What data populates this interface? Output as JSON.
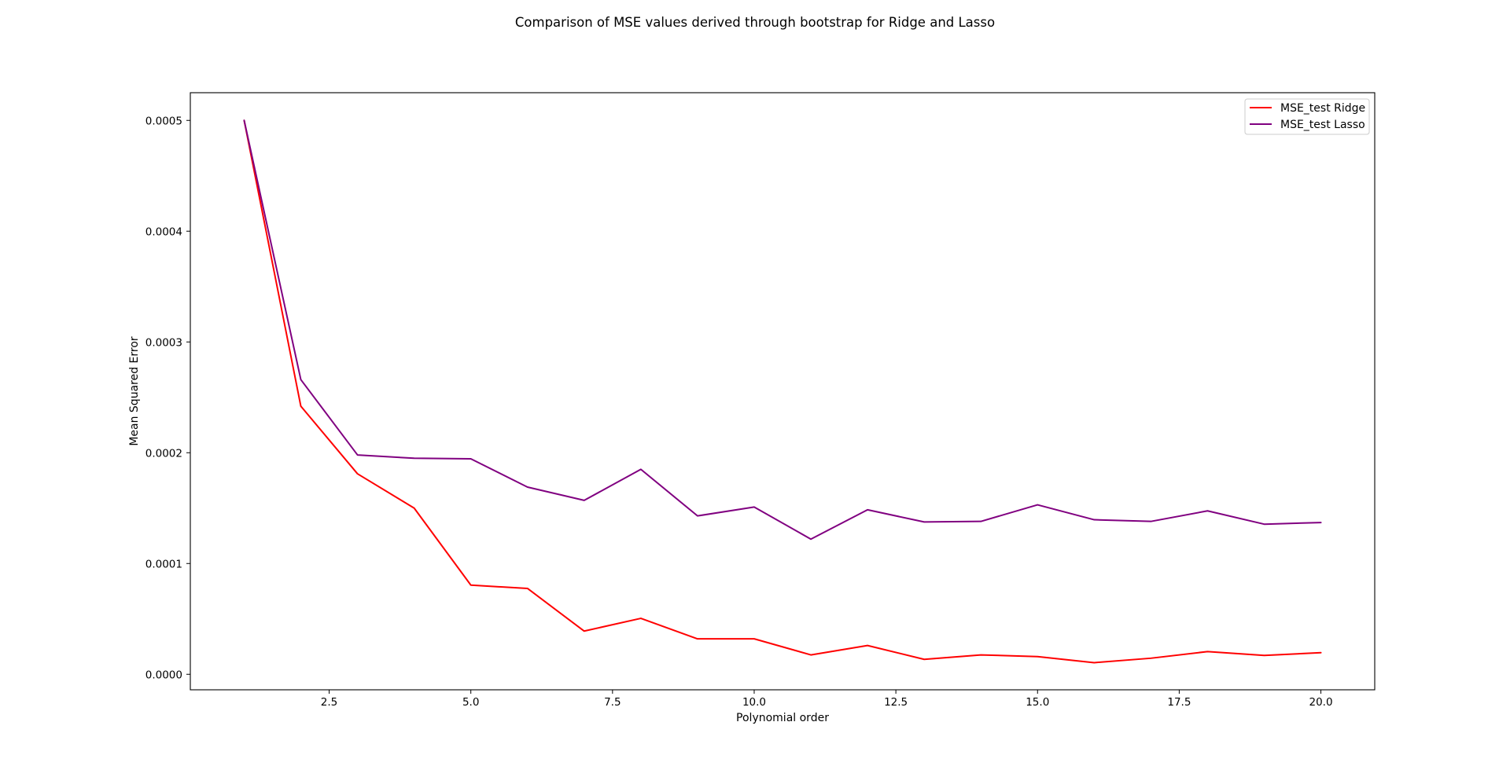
{
  "chart_data": {
    "type": "line",
    "title": "Comparison of MSE values derived through bootstrap for Ridge and Lasso",
    "xlabel": "Polynomial order",
    "ylabel": "Mean Squared Error",
    "xlim": [
      0.05,
      20.95
    ],
    "ylim": [
      -1.4e-05,
      0.000525
    ],
    "xticks": [
      2.5,
      5.0,
      7.5,
      10.0,
      12.5,
      15.0,
      17.5,
      20.0
    ],
    "xtick_labels": [
      "2.5",
      "5.0",
      "7.5",
      "10.0",
      "12.5",
      "15.0",
      "17.5",
      "20.0"
    ],
    "yticks": [
      0.0,
      0.0001,
      0.0002,
      0.0003,
      0.0004,
      0.0005
    ],
    "ytick_labels": [
      "0.0000",
      "0.0001",
      "0.0002",
      "0.0003",
      "0.0004",
      "0.0005"
    ],
    "grid": false,
    "legend_position": "top-right",
    "x": [
      1,
      2,
      3,
      4,
      5,
      6,
      7,
      8,
      9,
      10,
      11,
      12,
      13,
      14,
      15,
      16,
      17,
      18,
      19,
      20
    ],
    "series": [
      {
        "name": "MSE_test Ridge",
        "color": "#ff0000",
        "values": [
          0.0005,
          0.000242,
          0.000181,
          0.00015,
          8.05e-05,
          7.75e-05,
          3.9e-05,
          5.05e-05,
          3.2e-05,
          3.2e-05,
          1.75e-05,
          2.6e-05,
          1.35e-05,
          1.75e-05,
          1.6e-05,
          1.05e-05,
          1.45e-05,
          2.05e-05,
          1.7e-05,
          1.95e-05
        ]
      },
      {
        "name": "MSE_test Lasso",
        "color": "#800080",
        "values": [
          0.0005,
          0.000266,
          0.000198,
          0.000195,
          0.0001945,
          0.000169,
          0.000157,
          0.000185,
          0.000143,
          0.000151,
          0.000122,
          0.0001485,
          0.0001375,
          0.000138,
          0.000153,
          0.0001395,
          0.000138,
          0.0001475,
          0.0001355,
          0.000137
        ]
      }
    ]
  }
}
